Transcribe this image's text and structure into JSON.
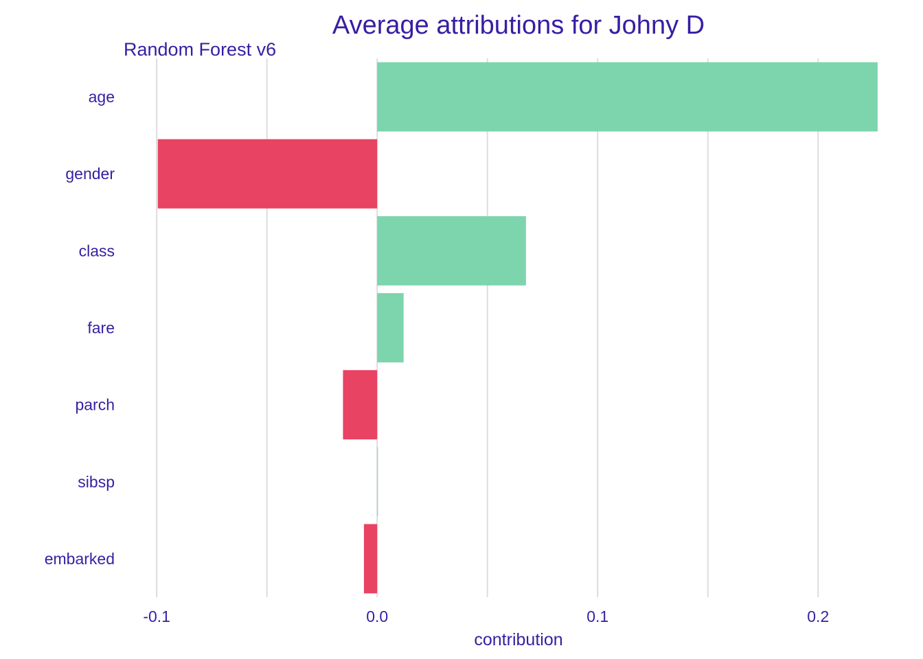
{
  "chart_data": {
    "type": "bar",
    "orientation": "horizontal",
    "title": "Average attributions for Johny D",
    "subtitle": "Random Forest v6",
    "xlabel": "contribution",
    "ylabel": "",
    "categories": [
      "age",
      "gender",
      "class",
      "fare",
      "parch",
      "sibsp",
      "embarked"
    ],
    "values": [
      0.227,
      -0.0995,
      0.0675,
      0.012,
      -0.0155,
      0.0003,
      -0.006
    ],
    "xlim": [
      -0.115,
      0.232
    ],
    "x_ticks": [
      -0.1,
      0.0,
      0.1,
      0.2
    ],
    "x_tick_labels": [
      "-0.1",
      "0.0",
      "0.1",
      "0.2"
    ],
    "grid": "vertical",
    "legend": "none",
    "colors": {
      "positive": "#7dd5ad",
      "negative": "#e84362",
      "text": "#371ea3",
      "grid": "#dddddd"
    }
  }
}
